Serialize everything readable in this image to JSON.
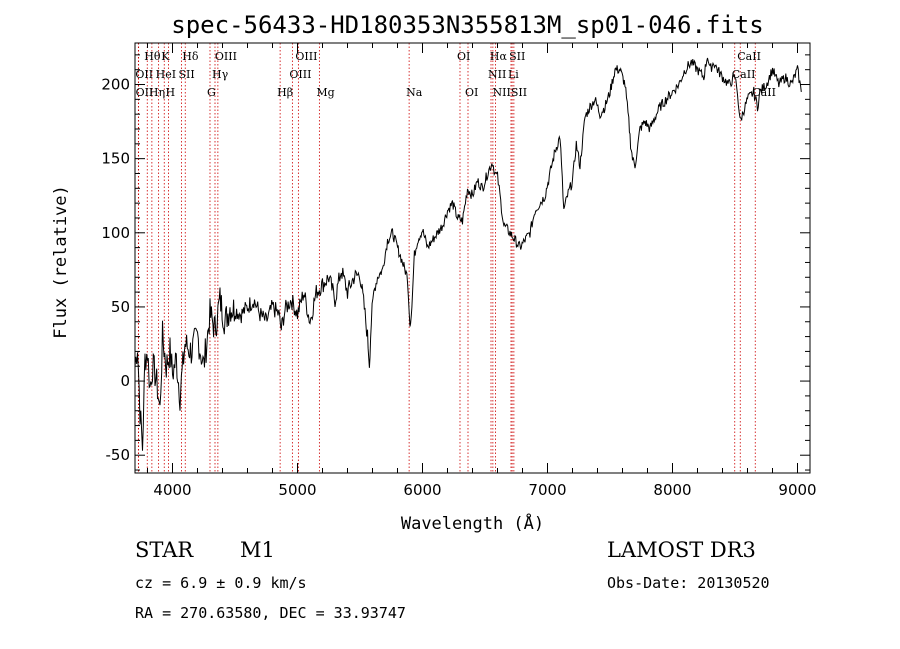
{
  "chart_data": {
    "type": "line",
    "title": "spec-56433-HD180353N355813M_sp01-046.fits",
    "xlabel": "Wavelength (Å)",
    "ylabel": "Flux (relative)",
    "xlim": [
      3700,
      9100
    ],
    "ylim": [
      -62,
      228
    ],
    "xticks": [
      4000,
      5000,
      6000,
      7000,
      8000,
      9000
    ],
    "yticks": [
      -50,
      0,
      50,
      100,
      150,
      200
    ],
    "series": [
      {
        "name": "flux",
        "x": [
          3700,
          3720,
          3740,
          3760,
          3780,
          3800,
          3820,
          3840,
          3860,
          3880,
          3900,
          3920,
          3950,
          3980,
          4000,
          4030,
          4060,
          4100,
          4150,
          4200,
          4250,
          4300,
          4340,
          4380,
          4420,
          4460,
          4500,
          4550,
          4600,
          4650,
          4700,
          4750,
          4800,
          4850,
          4870,
          4900,
          4950,
          5000,
          5050,
          5100,
          5150,
          5200,
          5250,
          5300,
          5350,
          5400,
          5450,
          5500,
          5540,
          5560,
          5575,
          5590,
          5610,
          5640,
          5680,
          5720,
          5760,
          5800,
          5840,
          5880,
          5900,
          5915,
          5935,
          5960,
          6000,
          6040,
          6080,
          6120,
          6160,
          6200,
          6240,
          6280,
          6320,
          6360,
          6400,
          6440,
          6480,
          6520,
          6560,
          6580,
          6600,
          6620,
          6650,
          6700,
          6740,
          6780,
          6820,
          6860,
          6900,
          6940,
          6980,
          7020,
          7060,
          7100,
          7130,
          7160,
          7200,
          7230,
          7260,
          7300,
          7340,
          7380,
          7420,
          7460,
          7500,
          7540,
          7580,
          7620,
          7650,
          7665,
          7680,
          7700,
          7740,
          7780,
          7820,
          7860,
          7900,
          7950,
          8000,
          8050,
          8100,
          8150,
          8200,
          8250,
          8280,
          8300,
          8330,
          8360,
          8400,
          8450,
          8500,
          8520,
          8540,
          8560,
          8600,
          8650,
          8680,
          8700,
          8750,
          8800,
          8850,
          8900,
          8950,
          9000,
          9030
        ],
        "y": [
          10,
          25,
          -20,
          -45,
          15,
          20,
          -5,
          10,
          5,
          -5,
          -20,
          30,
          10,
          20,
          5,
          15,
          -10,
          25,
          20,
          30,
          10,
          45,
          35,
          55,
          40,
          50,
          48,
          45,
          50,
          55,
          45,
          40,
          50,
          45,
          35,
          48,
          55,
          45,
          60,
          40,
          60,
          65,
          70,
          55,
          75,
          60,
          70,
          72,
          45,
          30,
          12,
          40,
          60,
          70,
          75,
          95,
          100,
          90,
          80,
          70,
          38,
          50,
          85,
          95,
          102,
          90,
          95,
          100,
          105,
          115,
          120,
          110,
          108,
          130,
          125,
          135,
          130,
          140,
          148,
          140,
          138,
          125,
          105,
          100,
          95,
          90,
          95,
          100,
          115,
          120,
          125,
          140,
          155,
          165,
          115,
          125,
          135,
          160,
          145,
          178,
          185,
          190,
          180,
          185,
          195,
          210,
          210,
          200,
          175,
          160,
          150,
          145,
          170,
          175,
          170,
          178,
          185,
          190,
          195,
          200,
          210,
          215,
          210,
          205,
          220,
          210,
          215,
          210,
          205,
          200,
          205,
          195,
          175,
          180,
          190,
          195,
          185,
          195,
          200,
          210,
          200,
          205,
          200,
          210,
          195
        ]
      }
    ],
    "spectral_lines": [
      {
        "label": "Hθ",
        "wl": 3798,
        "row": 0
      },
      {
        "label": "K",
        "wl": 3934,
        "row": 0
      },
      {
        "label": "Hδ",
        "wl": 4102,
        "row": 0
      },
      {
        "label": "OIII",
        "wl": 4363,
        "row": 0
      },
      {
        "label": "OIII",
        "wl": 5007,
        "row": 0
      },
      {
        "label": "OI",
        "wl": 6300,
        "row": 0
      },
      {
        "label": "Hα",
        "wl": 6563,
        "row": 0
      },
      {
        "label": "SII",
        "wl": 6717,
        "row": 0
      },
      {
        "label": "CaII",
        "wl": 8542,
        "row": 0
      },
      {
        "label": "OII",
        "wl": 3727,
        "row": 1
      },
      {
        "label": "HeI",
        "wl": 3889,
        "row": 1
      },
      {
        "label": "SII",
        "wl": 4072,
        "row": 1
      },
      {
        "label": "Hγ",
        "wl": 4340,
        "row": 1
      },
      {
        "label": "OIII",
        "wl": 4959,
        "row": 1
      },
      {
        "label": "NII",
        "wl": 6548,
        "row": 1
      },
      {
        "label": "Li",
        "wl": 6708,
        "row": 1
      },
      {
        "label": "CaII",
        "wl": 8498,
        "row": 1
      },
      {
        "label": "OII",
        "wl": 3729,
        "row": 2
      },
      {
        "label": "Hη",
        "wl": 3835,
        "row": 2
      },
      {
        "label": "H",
        "wl": 3968,
        "row": 2
      },
      {
        "label": "G",
        "wl": 4300,
        "row": 2
      },
      {
        "label": "Hβ",
        "wl": 4861,
        "row": 2
      },
      {
        "label": "Mg",
        "wl": 5175,
        "row": 2
      },
      {
        "label": "Na",
        "wl": 5893,
        "row": 2
      },
      {
        "label": "OI",
        "wl": 6364,
        "row": 2
      },
      {
        "label": "NII",
        "wl": 6584,
        "row": 2
      },
      {
        "label": "SII",
        "wl": 6731,
        "row": 2
      },
      {
        "label": "CaII",
        "wl": 8662,
        "row": 2
      }
    ]
  },
  "info": {
    "class_label": "STAR",
    "subclass": "M1",
    "cz": "cz = 6.9 ± 0.9 km/s",
    "radec": "RA = 270.63580, DEC =  33.93747",
    "survey": "LAMOST DR3",
    "obs_date": "Obs-Date: 20130520"
  },
  "colors": {
    "axis": "#000000",
    "spectrum": "#000000",
    "line_marker": "#cc0000"
  }
}
